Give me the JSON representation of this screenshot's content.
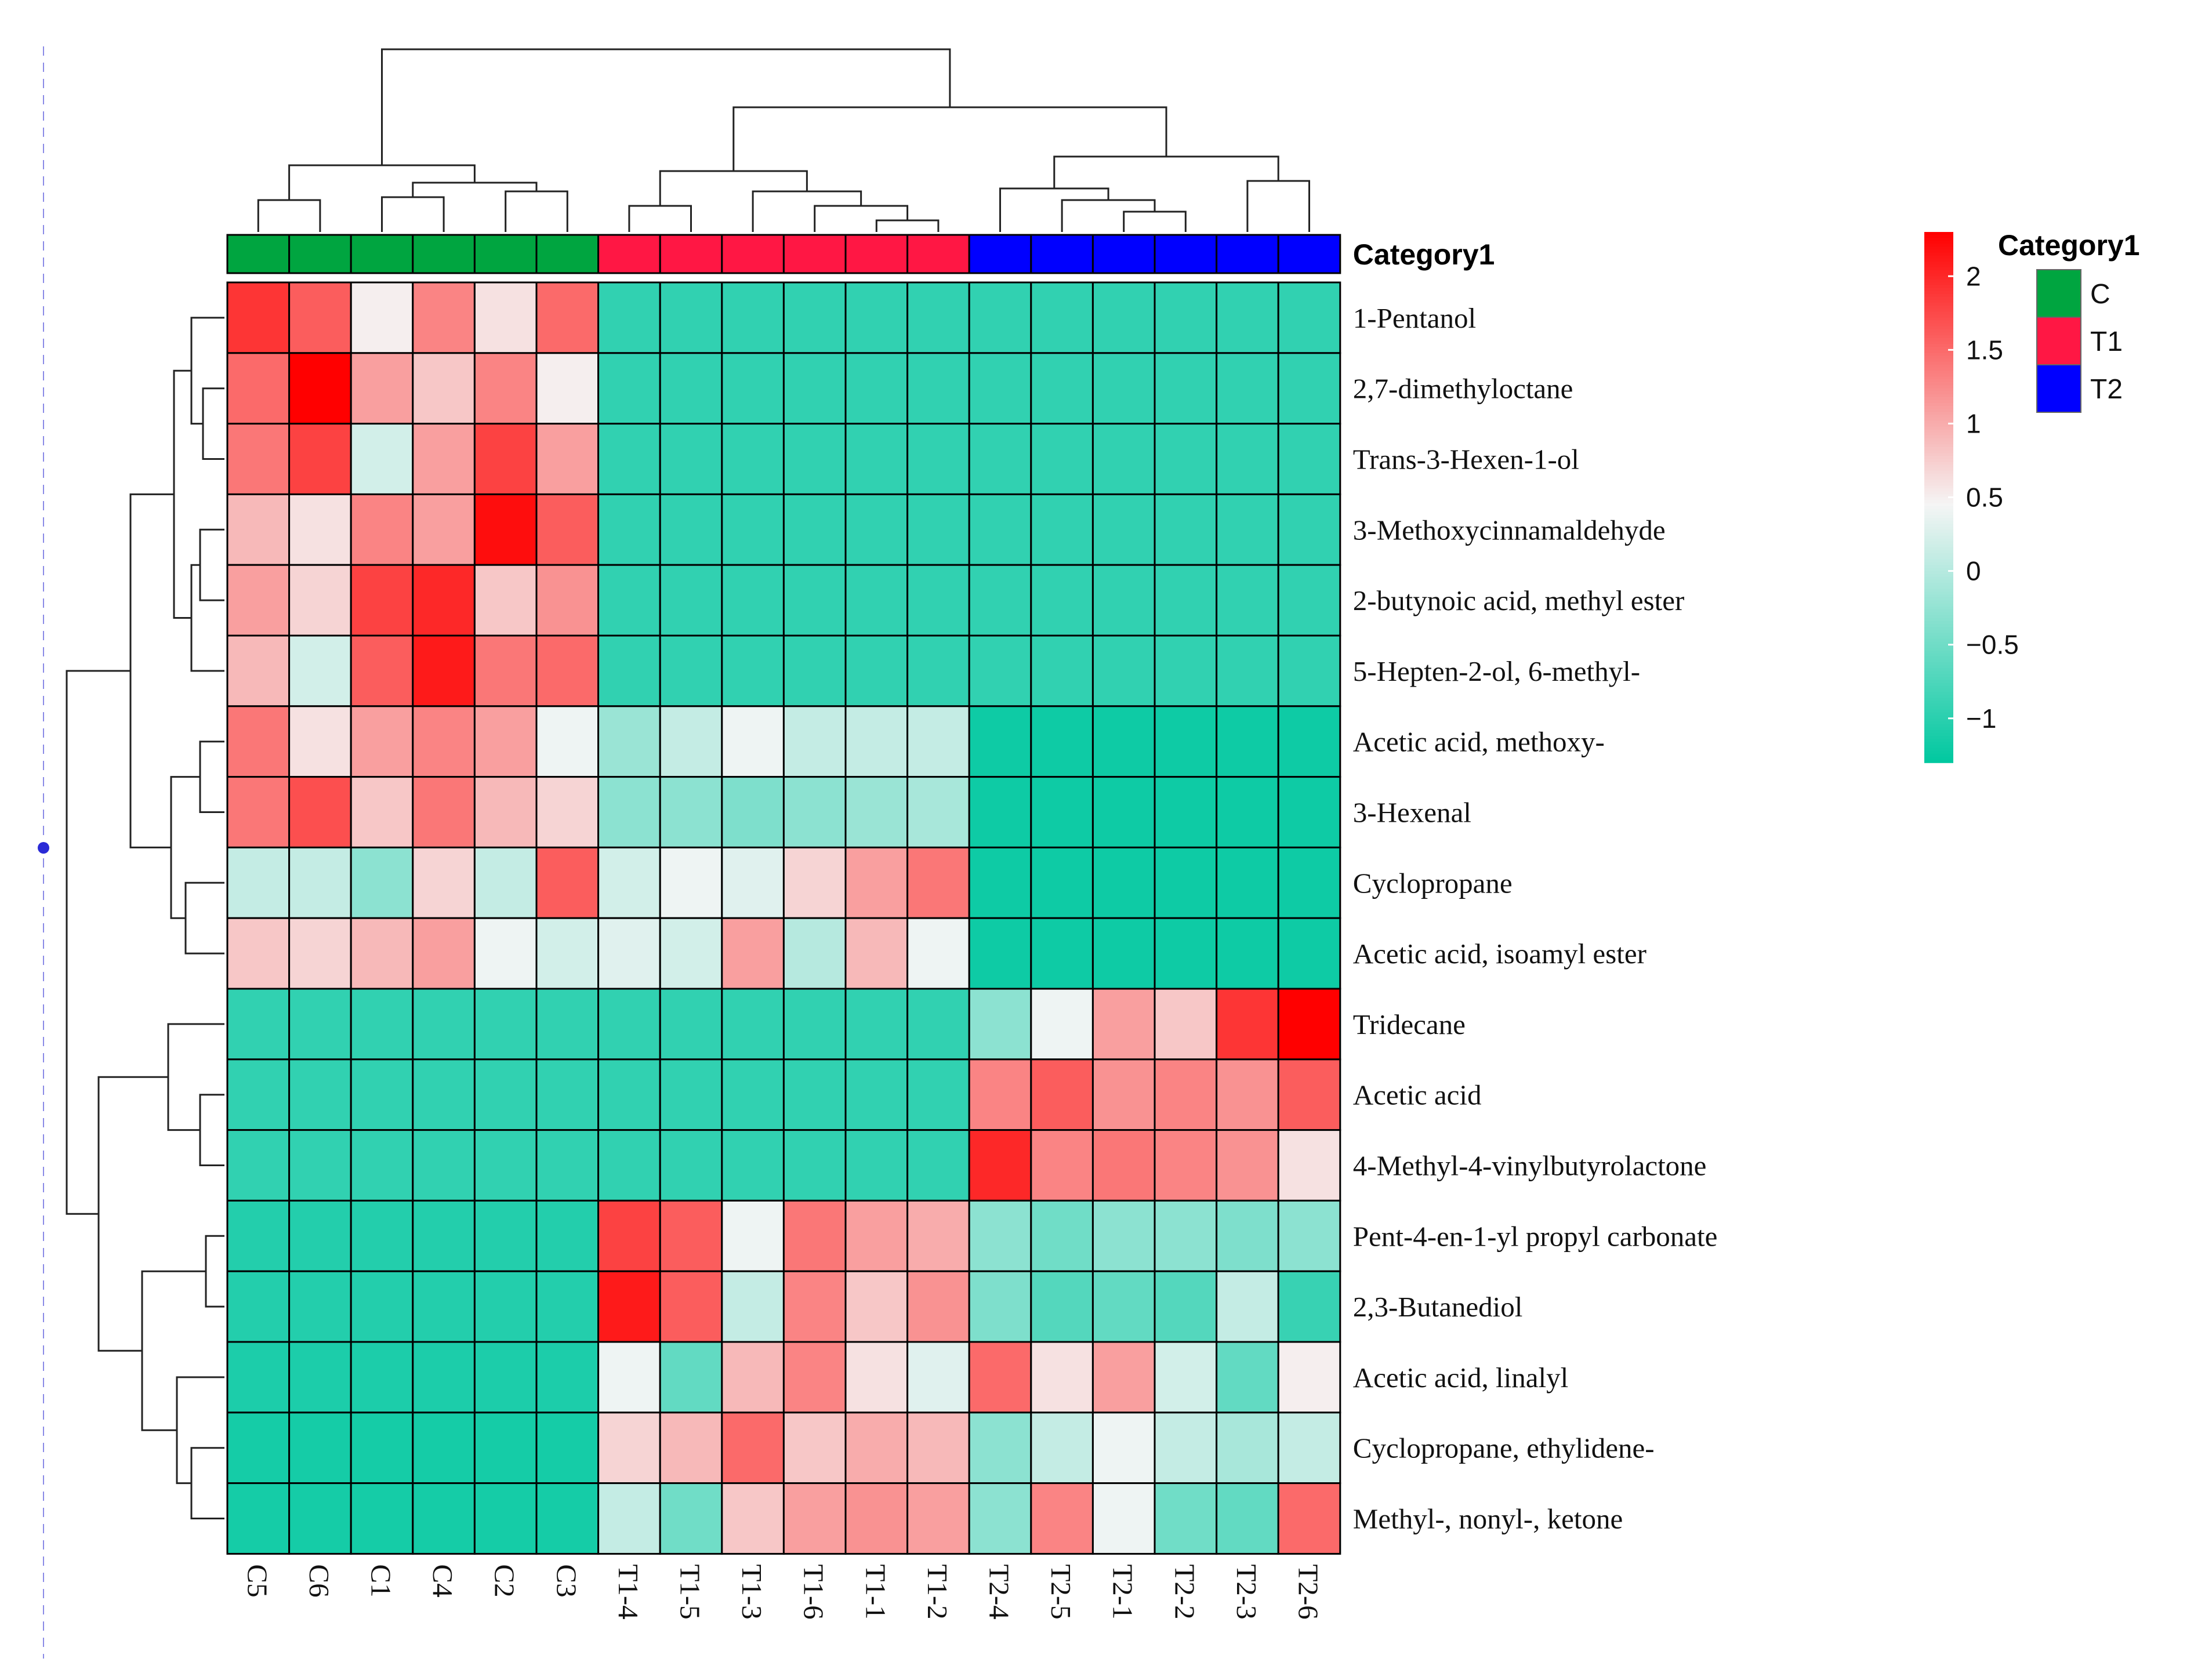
{
  "chart_data": {
    "type": "heatmap",
    "title": "",
    "columns": [
      "C5",
      "C6",
      "C1",
      "C4",
      "C2",
      "C3",
      "T1-4",
      "T1-5",
      "T1-3",
      "T1-6",
      "T1-1",
      "T1-2",
      "T2-4",
      "T2-5",
      "T2-1",
      "T2-2",
      "T2-3",
      "T2-6"
    ],
    "column_groups": [
      "C",
      "C",
      "C",
      "C",
      "C",
      "C",
      "T1",
      "T1",
      "T1",
      "T1",
      "T1",
      "T1",
      "T2",
      "T2",
      "T2",
      "T2",
      "T2",
      "T2"
    ],
    "rows": [
      "1-Pentanol",
      "2,7-dimethyloctane",
      "Trans-3-Hexen-1-ol",
      "3-Methoxycinnamaldehyde",
      "2-butynoic acid, methyl ester",
      "5-Hepten-2-ol, 6-methyl-",
      "Acetic acid, methoxy-",
      "3-Hexenal",
      "Cyclopropane",
      "Acetic acid, isoamyl ester",
      "Tridecane",
      "Acetic acid",
      "4-Methyl-4-vinylbutyrolactone",
      "Pent-4-en-1-yl propyl carbonate",
      "2,3-Butanediol",
      "Acetic acid, linalyl",
      "Cyclopropane, ethylidene-",
      "Methyl-, nonyl-, ketone"
    ],
    "values": [
      [
        1.9,
        1.6,
        0.5,
        1.3,
        0.6,
        1.5,
        -0.95,
        -0.95,
        -0.95,
        -0.95,
        -0.95,
        -0.95,
        -0.95,
        -0.95,
        -0.95,
        -0.95,
        -0.95,
        -0.95
      ],
      [
        1.5,
        2.3,
        1.1,
        0.8,
        1.3,
        0.5,
        -0.95,
        -0.95,
        -0.95,
        -0.95,
        -0.95,
        -0.95,
        -0.95,
        -0.95,
        -0.95,
        -0.95,
        -0.95,
        -0.95
      ],
      [
        1.4,
        1.8,
        0.2,
        1.1,
        1.8,
        1.1,
        -0.95,
        -0.95,
        -0.95,
        -0.95,
        -0.95,
        -0.95,
        -0.95,
        -0.95,
        -0.95,
        -0.95,
        -0.95,
        -0.95
      ],
      [
        0.9,
        0.6,
        1.3,
        1.1,
        2.2,
        1.6,
        -0.95,
        -0.95,
        -0.95,
        -0.95,
        -0.95,
        -0.95,
        -0.95,
        -0.95,
        -0.95,
        -0.95,
        -0.95,
        -0.95
      ],
      [
        1.1,
        0.7,
        1.8,
        2.0,
        0.8,
        1.2,
        -0.95,
        -0.95,
        -0.95,
        -0.95,
        -0.95,
        -0.95,
        -0.95,
        -0.95,
        -0.95,
        -0.95,
        -0.95,
        -0.95
      ],
      [
        0.9,
        0.2,
        1.6,
        2.1,
        1.4,
        1.5,
        -0.95,
        -0.95,
        -0.95,
        -0.95,
        -0.95,
        -0.95,
        -0.95,
        -0.95,
        -0.95,
        -0.95,
        -0.95,
        -0.95
      ],
      [
        1.4,
        0.6,
        1.1,
        1.3,
        1.1,
        0.4,
        -0.2,
        0.1,
        0.4,
        0.1,
        0.1,
        0.1,
        -1.2,
        -1.2,
        -1.2,
        -1.2,
        -1.2,
        -1.2
      ],
      [
        1.4,
        1.7,
        0.8,
        1.4,
        0.9,
        0.7,
        -0.3,
        -0.3,
        -0.4,
        -0.3,
        -0.2,
        -0.1,
        -1.2,
        -1.2,
        -1.2,
        -1.2,
        -1.2,
        -1.2
      ],
      [
        0.1,
        0.1,
        -0.3,
        0.7,
        0.1,
        1.6,
        0.2,
        0.4,
        0.3,
        0.7,
        1.1,
        1.4,
        -1.2,
        -1.2,
        -1.2,
        -1.2,
        -1.2,
        -1.2
      ],
      [
        0.8,
        0.7,
        0.9,
        1.1,
        0.4,
        0.2,
        0.3,
        0.2,
        1.1,
        0.0,
        0.9,
        0.4,
        -1.2,
        -1.2,
        -1.2,
        -1.2,
        -1.2,
        -1.2
      ],
      [
        -0.95,
        -0.95,
        -0.95,
        -0.95,
        -0.95,
        -0.95,
        -0.95,
        -0.95,
        -0.95,
        -0.95,
        -0.95,
        -0.95,
        -0.3,
        0.4,
        1.1,
        0.8,
        1.9,
        2.3
      ],
      [
        -0.95,
        -0.95,
        -0.95,
        -0.95,
        -0.95,
        -0.95,
        -0.95,
        -0.95,
        -0.95,
        -0.95,
        -0.95,
        -0.95,
        1.3,
        1.6,
        1.2,
        1.3,
        1.2,
        1.6
      ],
      [
        -0.95,
        -0.95,
        -0.95,
        -0.95,
        -0.95,
        -0.95,
        -0.95,
        -0.95,
        -0.95,
        -0.95,
        -0.95,
        -0.95,
        2.0,
        1.3,
        1.4,
        1.3,
        1.2,
        0.6
      ],
      [
        -1.05,
        -1.05,
        -1.05,
        -1.05,
        -1.05,
        -1.05,
        1.8,
        1.6,
        0.4,
        1.4,
        1.1,
        1.0,
        -0.3,
        -0.5,
        -0.3,
        -0.3,
        -0.4,
        -0.3
      ],
      [
        -1.05,
        -1.05,
        -1.05,
        -1.05,
        -1.05,
        -1.05,
        2.1,
        1.6,
        0.1,
        1.3,
        0.8,
        1.2,
        -0.4,
        -0.7,
        -0.6,
        -0.7,
        0.1,
        -0.9
      ],
      [
        -1.1,
        -1.1,
        -1.1,
        -1.1,
        -1.1,
        -1.1,
        0.4,
        -0.6,
        0.9,
        1.3,
        0.6,
        0.3,
        1.5,
        0.6,
        1.1,
        0.2,
        -0.6,
        0.5
      ],
      [
        -1.15,
        -1.15,
        -1.15,
        -1.15,
        -1.15,
        -1.15,
        0.7,
        0.9,
        1.5,
        0.8,
        1.0,
        0.9,
        -0.3,
        0.1,
        0.4,
        0.1,
        -0.1,
        0.1
      ],
      [
        -1.15,
        -1.15,
        -1.15,
        -1.15,
        -1.15,
        -1.15,
        0.1,
        -0.5,
        0.8,
        1.1,
        1.2,
        1.1,
        -0.3,
        1.3,
        0.4,
        -0.5,
        -0.6,
        1.5
      ]
    ],
    "color_scale": {
      "min": -1.3,
      "max": 2.3,
      "low_color": "#00C8A0",
      "mid_color": "#F5F5F5",
      "high_color": "#FF0000",
      "mid_value": 0.45,
      "ticks": [
        "2",
        "1.5",
        "1",
        "0.5",
        "0",
        "−0.5",
        "−1"
      ],
      "tick_values": [
        2,
        1.5,
        1,
        0.5,
        0,
        -0.5,
        -1
      ]
    },
    "annotation": {
      "name": "Category1",
      "legend_title": "Category1",
      "levels": [
        "C",
        "T1",
        "T2"
      ],
      "colors": {
        "C": "#00A540",
        "T1": "#FF1744",
        "T2": "#0000FF"
      }
    }
  }
}
